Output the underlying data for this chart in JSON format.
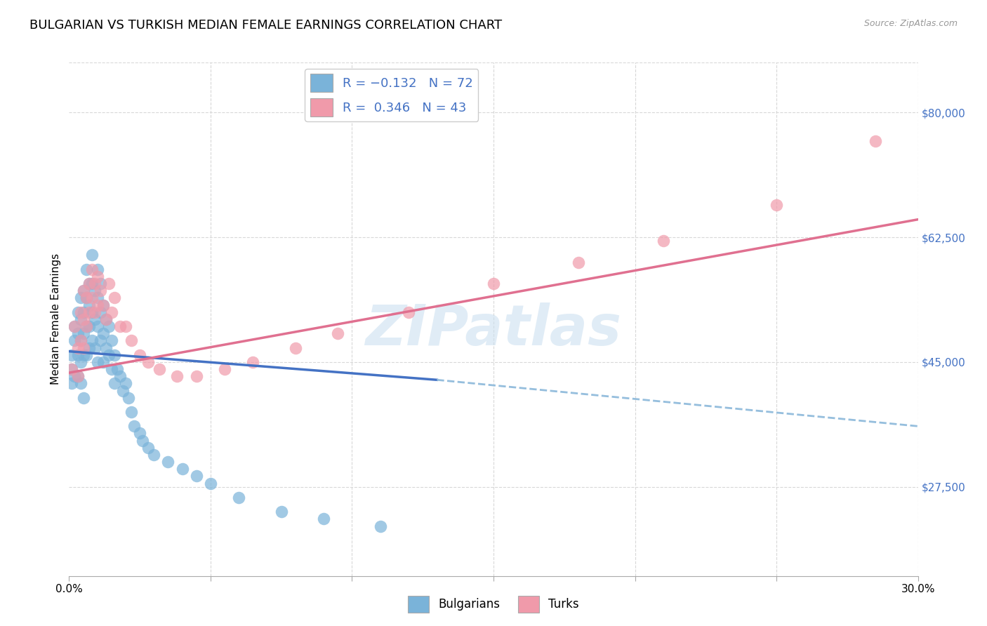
{
  "title": "BULGARIAN VS TURKISH MEDIAN FEMALE EARNINGS CORRELATION CHART",
  "source": "Source: ZipAtlas.com",
  "ylabel": "Median Female Earnings",
  "ytick_labels": [
    "$27,500",
    "$45,000",
    "$62,500",
    "$80,000"
  ],
  "ytick_values": [
    27500,
    45000,
    62500,
    80000
  ],
  "xlim": [
    0.0,
    0.3
  ],
  "ylim": [
    15000,
    87000
  ],
  "watermark": "ZIPatlas",
  "bulgarians_color": "#7ab3d9",
  "turks_color": "#f09aaa",
  "blue_line_color": "#4472c4",
  "pink_line_color": "#e07090",
  "dashed_line_color": "#95bedd",
  "bg_color": "#ffffff",
  "grid_color": "#d8d8d8",
  "title_fontsize": 13,
  "axis_label_fontsize": 11,
  "tick_fontsize": 11,
  "legend_fontsize": 13,
  "bulgarians_x": [
    0.001,
    0.001,
    0.001,
    0.002,
    0.002,
    0.002,
    0.003,
    0.003,
    0.003,
    0.003,
    0.004,
    0.004,
    0.004,
    0.004,
    0.004,
    0.005,
    0.005,
    0.005,
    0.005,
    0.005,
    0.006,
    0.006,
    0.006,
    0.006,
    0.007,
    0.007,
    0.007,
    0.007,
    0.008,
    0.008,
    0.008,
    0.008,
    0.009,
    0.009,
    0.009,
    0.01,
    0.01,
    0.01,
    0.01,
    0.011,
    0.011,
    0.011,
    0.012,
    0.012,
    0.012,
    0.013,
    0.013,
    0.014,
    0.014,
    0.015,
    0.015,
    0.016,
    0.016,
    0.017,
    0.018,
    0.019,
    0.02,
    0.021,
    0.022,
    0.023,
    0.025,
    0.026,
    0.028,
    0.03,
    0.035,
    0.04,
    0.045,
    0.05,
    0.06,
    0.075,
    0.09,
    0.11
  ],
  "bulgarians_y": [
    46000,
    44000,
    42000,
    50000,
    48000,
    43000,
    52000,
    49000,
    46000,
    43000,
    54000,
    51000,
    48000,
    45000,
    42000,
    55000,
    52000,
    49000,
    46000,
    40000,
    58000,
    54000,
    50000,
    46000,
    56000,
    53000,
    50000,
    47000,
    60000,
    56000,
    52000,
    48000,
    55000,
    51000,
    47000,
    58000,
    54000,
    50000,
    45000,
    56000,
    52000,
    48000,
    53000,
    49000,
    45000,
    51000,
    47000,
    50000,
    46000,
    48000,
    44000,
    46000,
    42000,
    44000,
    43000,
    41000,
    42000,
    40000,
    38000,
    36000,
    35000,
    34000,
    33000,
    32000,
    31000,
    30000,
    29000,
    28000,
    26000,
    24000,
    23000,
    22000
  ],
  "turks_x": [
    0.001,
    0.002,
    0.003,
    0.003,
    0.004,
    0.004,
    0.005,
    0.005,
    0.005,
    0.006,
    0.006,
    0.007,
    0.007,
    0.008,
    0.008,
    0.009,
    0.009,
    0.01,
    0.01,
    0.011,
    0.012,
    0.013,
    0.014,
    0.015,
    0.016,
    0.018,
    0.02,
    0.022,
    0.025,
    0.028,
    0.032,
    0.038,
    0.045,
    0.055,
    0.065,
    0.08,
    0.095,
    0.12,
    0.15,
    0.18,
    0.21,
    0.25,
    0.285
  ],
  "turks_y": [
    44000,
    50000,
    47000,
    43000,
    52000,
    48000,
    55000,
    51000,
    47000,
    54000,
    50000,
    56000,
    52000,
    58000,
    54000,
    56000,
    52000,
    57000,
    53000,
    55000,
    53000,
    51000,
    56000,
    52000,
    54000,
    50000,
    50000,
    48000,
    46000,
    45000,
    44000,
    43000,
    43000,
    44000,
    45000,
    47000,
    49000,
    52000,
    56000,
    59000,
    62000,
    67000,
    76000
  ],
  "blue_line_x0": 0.0,
  "blue_line_y0": 46500,
  "blue_line_x1": 0.13,
  "blue_line_y1": 42500,
  "blue_line_xdash0": 0.13,
  "blue_line_ydash0": 42500,
  "blue_line_xdash1": 0.3,
  "blue_line_ydash1": 36000,
  "pink_line_x0": 0.0,
  "pink_line_y0": 43500,
  "pink_line_x1": 0.3,
  "pink_line_y1": 65000
}
